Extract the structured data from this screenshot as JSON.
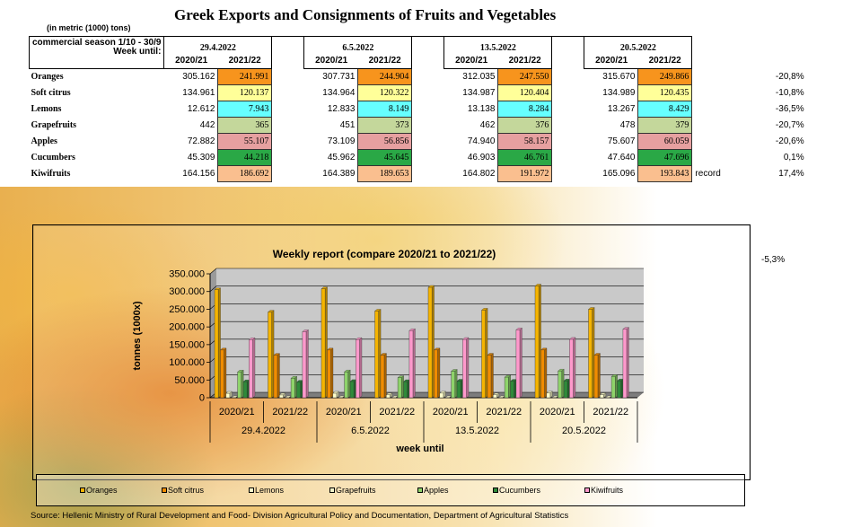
{
  "title": "Greek Exports and Consignments of Fruits and Vegetables",
  "units": "(in metric (1000) tons)",
  "header_box": {
    "line1": "commercial season 1/10 - 30/9",
    "line2": "Week until:"
  },
  "dates": [
    "29.4.2022",
    "6.5.2022",
    "13.5.2022",
    "20.5.2022"
  ],
  "years": [
    "2020/21",
    "2021/22"
  ],
  "colors": {
    "Oranges": "#f7941d",
    "Soft citrus": "#ffff99",
    "Lemons": "#66ffff",
    "Grapefruits": "#c4d79b",
    "Apples": "#e6a0a0",
    "Cucumbers": "#2aa846",
    "Kiwifruits": "#fabf8f"
  },
  "table": {
    "rows": [
      {
        "product": "Oranges",
        "cells": [
          [
            "305.162",
            "241.991"
          ],
          [
            "307.731",
            "244.904"
          ],
          [
            "312.035",
            "247.550"
          ],
          [
            "315.670",
            "249.866"
          ]
        ],
        "note": "",
        "pct": "-20,8%"
      },
      {
        "product": "Soft citrus",
        "cells": [
          [
            "134.961",
            "120.137"
          ],
          [
            "134.964",
            "120.322"
          ],
          [
            "134.987",
            "120.404"
          ],
          [
            "134.989",
            "120.435"
          ]
        ],
        "note": "",
        "pct": "-10,8%"
      },
      {
        "product": "Lemons",
        "cells": [
          [
            "12.612",
            "7.943"
          ],
          [
            "12.833",
            "8.149"
          ],
          [
            "13.138",
            "8.284"
          ],
          [
            "13.267",
            "8.429"
          ]
        ],
        "note": "",
        "pct": "-36,5%"
      },
      {
        "product": "Grapefruits",
        "cells": [
          [
            "442",
            "365"
          ],
          [
            "451",
            "373"
          ],
          [
            "462",
            "376"
          ],
          [
            "478",
            "379"
          ]
        ],
        "note": "",
        "pct": "-20,7%"
      },
      {
        "product": "Apples",
        "cells": [
          [
            "72.882",
            "55.107"
          ],
          [
            "73.109",
            "56.856"
          ],
          [
            "74.940",
            "58.157"
          ],
          [
            "75.607",
            "60.059"
          ]
        ],
        "note": "",
        "pct": "-20,6%"
      },
      {
        "product": "Cucumbers",
        "cells": [
          [
            "45.309",
            "44.218"
          ],
          [
            "45.962",
            "45.645"
          ],
          [
            "46.903",
            "46.761"
          ],
          [
            "47.640",
            "47.696"
          ]
        ],
        "note": "",
        "pct": "0,1%"
      },
      {
        "product": "Kiwifruits",
        "cells": [
          [
            "164.156",
            "186.692"
          ],
          [
            "164.389",
            "189.653"
          ],
          [
            "164.802",
            "191.972"
          ],
          [
            "165.096",
            "193.843"
          ]
        ],
        "note": "record",
        "pct": "17,4%"
      }
    ]
  },
  "extra_pct": "-5,3%",
  "chart_data": {
    "type": "bar",
    "title": "Weekly report (compare 2020/21 to 2021/22)",
    "ylabel": "tonnes (1000x)",
    "xlabel": "week until",
    "ylim": [
      0,
      350000
    ],
    "yticks": [
      "0",
      "50.000",
      "100.000",
      "150.000",
      "200.000",
      "250.000",
      "300.000",
      "350.000"
    ],
    "ytick_values": [
      0,
      50000,
      100000,
      150000,
      200000,
      250000,
      300000,
      350000
    ],
    "categories": [
      "2020/21",
      "2021/22",
      "2020/21",
      "2021/22",
      "2020/21",
      "2021/22",
      "2020/21",
      "2021/22"
    ],
    "groups": [
      "29.4.2022",
      "6.5.2022",
      "13.5.2022",
      "20.5.2022"
    ],
    "series": [
      {
        "name": "Oranges",
        "color": "#f5b400",
        "values": [
          305162,
          241991,
          307731,
          244904,
          312035,
          247550,
          315670,
          249866
        ]
      },
      {
        "name": "Soft citrus",
        "color": "#f08c00",
        "values": [
          134961,
          120137,
          134964,
          120322,
          134987,
          120404,
          134989,
          120435
        ]
      },
      {
        "name": "Lemons",
        "color": "#ffffcc",
        "values": [
          12612,
          7943,
          12833,
          8149,
          13138,
          8284,
          13267,
          8429
        ]
      },
      {
        "name": "Grapefruits",
        "color": "#f3f3c8",
        "values": [
          442,
          365,
          451,
          373,
          462,
          376,
          478,
          379
        ]
      },
      {
        "name": "Apples",
        "color": "#8ed36a",
        "values": [
          72882,
          55107,
          73109,
          56856,
          74940,
          58157,
          75607,
          60059
        ]
      },
      {
        "name": "Cucumbers",
        "color": "#2f8a3a",
        "values": [
          45309,
          44218,
          45962,
          45645,
          46903,
          46761,
          47640,
          47696
        ]
      },
      {
        "name": "Kiwifruits",
        "color": "#ff99cc",
        "values": [
          164156,
          186692,
          164389,
          189653,
          164802,
          191972,
          165096,
          193843
        ]
      }
    ],
    "grid": true,
    "legend_position": "bottom"
  },
  "source": "Source: Hellenic Ministry of Rural Development and Food- Division Agricultural Policy and Documentation, Department of Agricultural Statistics"
}
